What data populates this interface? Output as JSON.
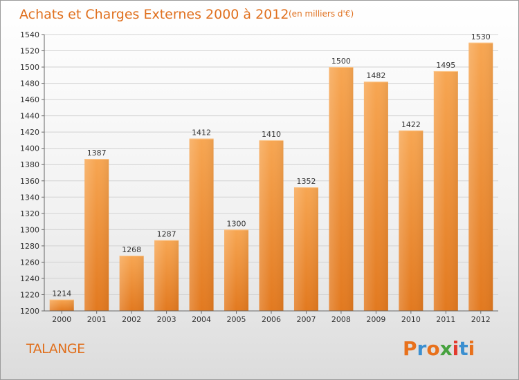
{
  "header": {
    "title": "Achats et Charges Externes 2000 à 2012",
    "subtitle": "(en milliers d'€)"
  },
  "footer": {
    "town": "TALANGE",
    "logo_text": "Proxiti",
    "logo_colors": [
      "#e8711c",
      "#3b8fd0",
      "#e8711c",
      "#47a23f",
      "#e23a2e",
      "#3b8fd0",
      "#e8711c"
    ]
  },
  "chart_data": {
    "type": "bar",
    "categories": [
      "2000",
      "2001",
      "2002",
      "2003",
      "2004",
      "2005",
      "2006",
      "2007",
      "2008",
      "2009",
      "2010",
      "2011",
      "2012"
    ],
    "values": [
      1214,
      1387,
      1268,
      1287,
      1412,
      1300,
      1410,
      1352,
      1500,
      1482,
      1422,
      1495,
      1530
    ],
    "title": "Achats et Charges Externes 2000 à 2012",
    "ylim": [
      1200,
      1540
    ],
    "yticks": [
      1200,
      1220,
      1240,
      1260,
      1280,
      1300,
      1320,
      1340,
      1360,
      1380,
      1400,
      1420,
      1440,
      1460,
      1480,
      1500,
      1520,
      1540
    ],
    "grid": true,
    "colors": {
      "bar_top": "#f7a450",
      "bar_bottom": "#e07b22",
      "title": "#e0701e"
    }
  }
}
